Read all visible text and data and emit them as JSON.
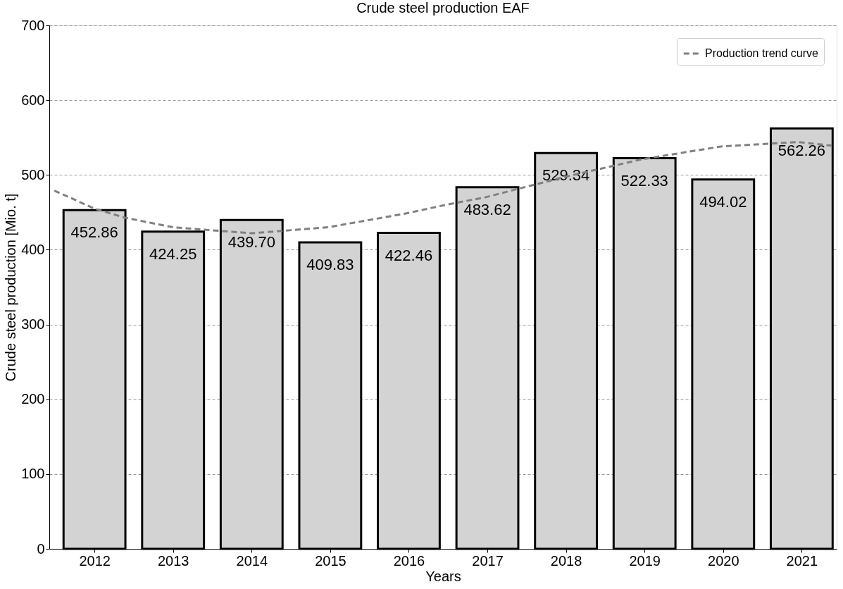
{
  "chart_data": {
    "type": "bar",
    "title": "Crude steel production EAF",
    "xlabel": "Years",
    "ylabel": "Crude steel production [Mio. t]",
    "x": [
      2012,
      2013,
      2014,
      2015,
      2016,
      2017,
      2018,
      2019,
      2020,
      2021
    ],
    "xlim": [
      2011.47,
      2021.4
    ],
    "xticks": [
      2012,
      2013,
      2014,
      2015,
      2016,
      2017,
      2018,
      2019,
      2020,
      2021
    ],
    "ylim": [
      0,
      700
    ],
    "yticks": [
      0,
      100,
      200,
      300,
      400,
      500,
      600,
      700
    ],
    "grid": "y",
    "legend": "top right",
    "series": [
      {
        "color": "#d3d3d3",
        "values": [
          452.86,
          424.25,
          439.7,
          409.83,
          422.46,
          483.62,
          529.34,
          522.33,
          494.02,
          562.26
        ],
        "value_labels": [
          "452.86",
          "424.25",
          "439.70",
          "409.83",
          "422.46",
          "483.62",
          "529.34",
          "522.33",
          "494.02",
          "562.26"
        ]
      },
      {
        "type": "line",
        "name": "Production trend curve",
        "color": "#808080",
        "line_style": "dashed",
        "x": [
          2011.49,
          2012,
          2012.38,
          2013,
          2014,
          2014.97,
          2015.94,
          2016.47,
          2016.97,
          2017.97,
          2018.97,
          2019.97,
          2020.95,
          2021.4
        ],
        "values": [
          479,
          455,
          443,
          430,
          422,
          430,
          448,
          460,
          470,
          497,
          521,
          538,
          544,
          539
        ]
      }
    ]
  }
}
